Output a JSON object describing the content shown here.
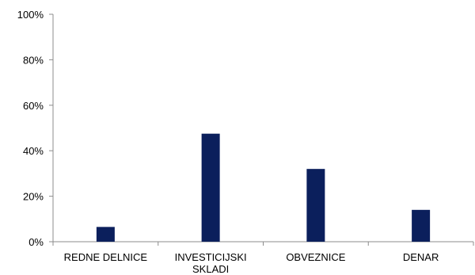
{
  "chart_data": {
    "type": "bar",
    "categories": [
      [
        "REDNE DELNICE"
      ],
      [
        "INVESTICIJSKI",
        "SKLADI"
      ],
      [
        "OBVEZNICE"
      ],
      [
        "DENAR"
      ]
    ],
    "values": [
      6.5,
      47.5,
      32,
      14
    ],
    "unit": "%",
    "ylim": [
      0,
      100
    ],
    "yticks": [
      "0%",
      "20%",
      "40%",
      "60%",
      "80%",
      "100%"
    ],
    "ytick_values": [
      0,
      20,
      40,
      60,
      80,
      100
    ],
    "grid": false,
    "legend": "none",
    "colors": {
      "bar": "#0b1f5c",
      "axis": "#8c8c8c",
      "text": "#000000"
    }
  }
}
